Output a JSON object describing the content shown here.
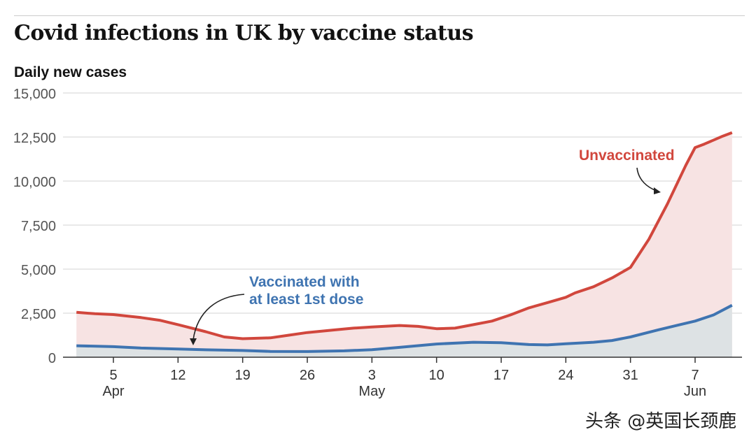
{
  "chart_data": {
    "type": "area",
    "title": "Covid infections in UK by vaccine status",
    "ylabel": "Daily new cases",
    "xlabel": "",
    "ylim": [
      0,
      15000
    ],
    "yticks": [
      0,
      2500,
      5000,
      7500,
      10000,
      12500,
      15000
    ],
    "ytick_labels": [
      "0",
      "2,500",
      "5,000",
      "7,500",
      "10,000",
      "12,500",
      "15,000"
    ],
    "xticks": [
      {
        "date": "2021-04-05",
        "label": "5",
        "month": "Apr"
      },
      {
        "date": "2021-04-12",
        "label": "12",
        "month": ""
      },
      {
        "date": "2021-04-19",
        "label": "19",
        "month": ""
      },
      {
        "date": "2021-04-26",
        "label": "26",
        "month": ""
      },
      {
        "date": "2021-05-03",
        "label": "3",
        "month": "May"
      },
      {
        "date": "2021-05-10",
        "label": "10",
        "month": ""
      },
      {
        "date": "2021-05-17",
        "label": "17",
        "month": ""
      },
      {
        "date": "2021-05-24",
        "label": "24",
        "month": ""
      },
      {
        "date": "2021-05-31",
        "label": "31",
        "month": ""
      },
      {
        "date": "2021-06-07",
        "label": "7",
        "month": "Jun"
      }
    ],
    "grid": true,
    "series": [
      {
        "name": "Unvaccinated",
        "color": "#d1473d",
        "fill": "#f7e3e3",
        "points": [
          [
            "2021-04-01",
            2550
          ],
          [
            "2021-04-03",
            2470
          ],
          [
            "2021-04-05",
            2420
          ],
          [
            "2021-04-08",
            2250
          ],
          [
            "2021-04-10",
            2100
          ],
          [
            "2021-04-12",
            1850
          ],
          [
            "2021-04-15",
            1450
          ],
          [
            "2021-04-17",
            1150
          ],
          [
            "2021-04-19",
            1050
          ],
          [
            "2021-04-22",
            1100
          ],
          [
            "2021-04-24",
            1250
          ],
          [
            "2021-04-26",
            1400
          ],
          [
            "2021-04-29",
            1550
          ],
          [
            "2021-05-01",
            1650
          ],
          [
            "2021-05-03",
            1720
          ],
          [
            "2021-05-06",
            1800
          ],
          [
            "2021-05-08",
            1750
          ],
          [
            "2021-05-10",
            1620
          ],
          [
            "2021-05-12",
            1650
          ],
          [
            "2021-05-14",
            1850
          ],
          [
            "2021-05-16",
            2050
          ],
          [
            "2021-05-18",
            2400
          ],
          [
            "2021-05-20",
            2800
          ],
          [
            "2021-05-22",
            3100
          ],
          [
            "2021-05-24",
            3400
          ],
          [
            "2021-05-25",
            3650
          ],
          [
            "2021-05-27",
            4000
          ],
          [
            "2021-05-29",
            4500
          ],
          [
            "2021-05-31",
            5100
          ],
          [
            "2021-06-02",
            6700
          ],
          [
            "2021-06-04",
            8700
          ],
          [
            "2021-06-06",
            10900
          ],
          [
            "2021-06-07",
            11900
          ],
          [
            "2021-06-08",
            12100
          ],
          [
            "2021-06-10",
            12550
          ],
          [
            "2021-06-11",
            12750
          ]
        ]
      },
      {
        "name": "Vaccinated with at least 1st dose",
        "color": "#3f74b1",
        "fill": "#dde2e4",
        "points": [
          [
            "2021-04-01",
            650
          ],
          [
            "2021-04-05",
            600
          ],
          [
            "2021-04-08",
            520
          ],
          [
            "2021-04-12",
            470
          ],
          [
            "2021-04-15",
            420
          ],
          [
            "2021-04-19",
            380
          ],
          [
            "2021-04-22",
            330
          ],
          [
            "2021-04-26",
            320
          ],
          [
            "2021-04-30",
            360
          ],
          [
            "2021-05-03",
            430
          ],
          [
            "2021-05-06",
            560
          ],
          [
            "2021-05-10",
            750
          ],
          [
            "2021-05-14",
            850
          ],
          [
            "2021-05-17",
            820
          ],
          [
            "2021-05-20",
            720
          ],
          [
            "2021-05-22",
            700
          ],
          [
            "2021-05-24",
            760
          ],
          [
            "2021-05-27",
            850
          ],
          [
            "2021-05-29",
            950
          ],
          [
            "2021-05-31",
            1150
          ],
          [
            "2021-06-03",
            1550
          ],
          [
            "2021-06-05",
            1800
          ],
          [
            "2021-06-07",
            2050
          ],
          [
            "2021-06-09",
            2400
          ],
          [
            "2021-06-11",
            2950
          ]
        ]
      }
    ],
    "annotations": {
      "unvaccinated": "Unvaccinated",
      "vaccinated_line1": "Vaccinated with",
      "vaccinated_line2": "at least 1st dose"
    }
  },
  "watermark": "头条 @英国长颈鹿"
}
